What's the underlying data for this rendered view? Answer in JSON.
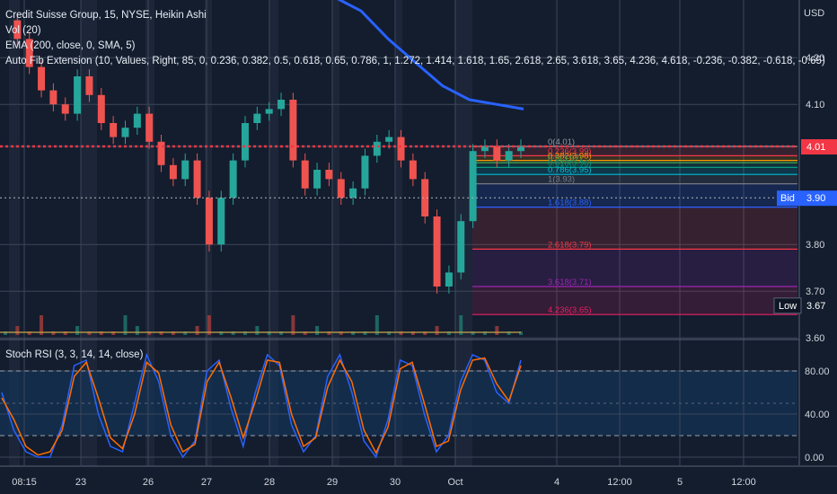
{
  "header": {
    "title": "Credit Suisse Group, 15, NYSE, Heikin Ashi",
    "indicators": [
      "Vol (20)",
      "EMA (200, close, 0, SMA, 5)",
      "Auto Fib Extension (10, Values, Right, 85, 0, 0.236, 0.382, 0.5, 0.618, 0.65, 0.786, 1, 1.272, 1.414, 1.618, 1.65, 2.618, 2.65, 3.618, 3.65, 4.236, 4.618, -0.236, -0.382, -0.618, -0.65)"
    ],
    "rsi_title": "Stoch RSI (3, 3, 14, 14, close)"
  },
  "chart_data": [
    {
      "type": "candlestick",
      "style": "Heikin Ashi",
      "symbol": "Credit Suisse Group",
      "interval": "15",
      "exchange": "NYSE",
      "currency": "USD",
      "y_ticks": [
        "4.20",
        "4.10",
        "4.01",
        "3.80",
        "3.70",
        "3.60"
      ],
      "ylim": [
        3.6,
        4.3
      ],
      "x_ticks": [
        "08:15",
        "23",
        "26",
        "27",
        "28",
        "29",
        "30",
        "Oct",
        "4",
        "12:00",
        "5",
        "12:00"
      ],
      "price_labels": [
        {
          "label": "",
          "value": "4.01",
          "color": "#f23645"
        },
        {
          "label": "Bid",
          "value": "3.90",
          "color": "#2962ff"
        },
        {
          "label": "Low",
          "value": "3.67",
          "color": "#131d2e"
        }
      ],
      "close_series": [
        4.28,
        4.24,
        4.18,
        4.13,
        4.1,
        4.08,
        4.16,
        4.12,
        4.06,
        4.03,
        4.05,
        4.08,
        4.02,
        3.97,
        3.94,
        3.98,
        3.9,
        3.8,
        3.9,
        3.98,
        4.06,
        4.08,
        4.09,
        4.11,
        3.98,
        3.92,
        3.96,
        3.94,
        3.9,
        3.92,
        3.99,
        4.02,
        4.03,
        3.98,
        3.94,
        3.86,
        3.71,
        3.74,
        3.85,
        4.0,
        4.01,
        3.98,
        4.0,
        4.01
      ],
      "ema200": [
        4.33,
        4.3,
        4.24,
        4.19,
        4.14,
        4.11,
        4.1,
        4.09
      ],
      "fib_levels": [
        {
          "label": "0(4.01)",
          "price": 4.01,
          "color": "#9598a1"
        },
        {
          "label": "0.236(3.99)",
          "price": 3.99,
          "color": "#f23645"
        },
        {
          "label": "0.382(3.98)",
          "price": 3.98,
          "color": "#ff9800"
        },
        {
          "label": "0.5(3.97)",
          "price": 3.975,
          "color": "#4caf50"
        },
        {
          "label": "0.618(3.96)",
          "price": 3.965,
          "color": "#089981"
        },
        {
          "label": "0.786(3.95)",
          "price": 3.95,
          "color": "#00bcd4"
        },
        {
          "label": "1(3.93)",
          "price": 3.93,
          "color": "#787b86"
        },
        {
          "label": "1.618(3.88)",
          "price": 3.88,
          "color": "#2962ff"
        },
        {
          "label": "2.618(3.79)",
          "price": 3.79,
          "color": "#f23645"
        },
        {
          "label": "3.618(3.71)",
          "price": 3.71,
          "color": "#9c27b0"
        },
        {
          "label": "4.236(3.65)",
          "price": 3.65,
          "color": "#e91e63"
        }
      ]
    },
    {
      "type": "line",
      "name": "Stoch RSI (3, 3, 14, 14, close)",
      "y_ticks": [
        "80.00",
        "40.00",
        "0.00"
      ],
      "ylim": [
        0,
        100
      ],
      "bands": [
        80,
        20
      ],
      "k": [
        60,
        25,
        5,
        0,
        0,
        30,
        85,
        90,
        40,
        10,
        5,
        50,
        95,
        70,
        20,
        0,
        15,
        80,
        90,
        45,
        10,
        60,
        95,
        85,
        30,
        5,
        20,
        75,
        95,
        60,
        15,
        0,
        35,
        90,
        85,
        40,
        5,
        20,
        70,
        95,
        90,
        60,
        50,
        90
      ],
      "d": [
        55,
        35,
        10,
        2,
        5,
        25,
        75,
        88,
        55,
        18,
        8,
        40,
        88,
        78,
        30,
        5,
        12,
        70,
        88,
        55,
        18,
        52,
        90,
        88,
        40,
        10,
        18,
        65,
        90,
        70,
        25,
        4,
        28,
        82,
        88,
        50,
        10,
        15,
        62,
        90,
        92,
        68,
        52,
        85
      ],
      "colors": [
        "#2962ff",
        "#ff6d00"
      ]
    }
  ]
}
